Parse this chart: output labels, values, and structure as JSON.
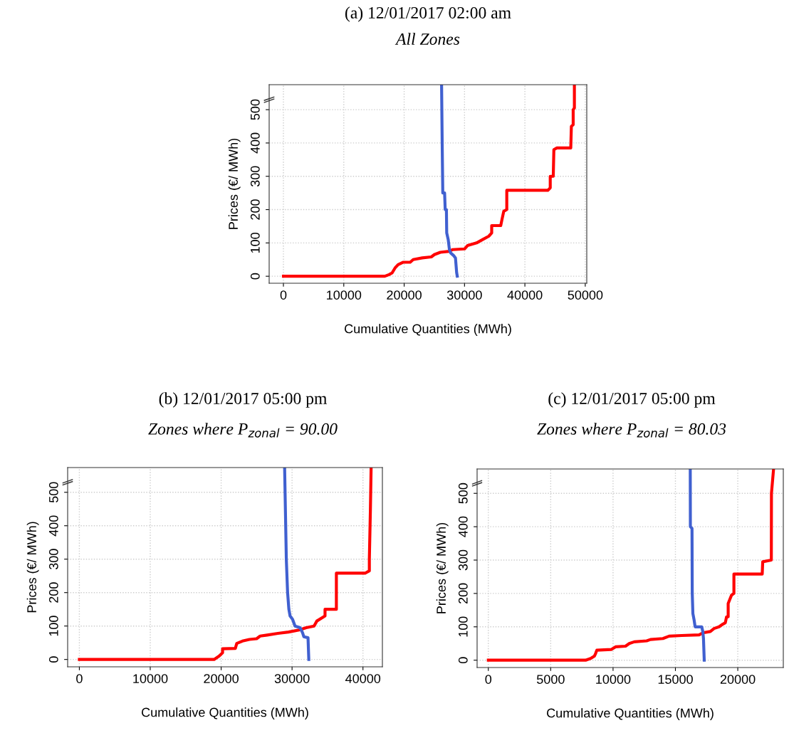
{
  "chart_data": [
    {
      "type": "line",
      "title": "(a) 12/01/2017 02:00 am",
      "subtitle": "All Zones",
      "xlabel": "Cumulative Quantities (MWh)",
      "ylabel": "Prices (€/ MWh)",
      "xlim": [
        -2360,
        50250
      ],
      "ylim": [
        -21,
        575
      ],
      "xticks": [
        0,
        10000,
        20000,
        30000,
        40000,
        50000
      ],
      "yticks": [
        0,
        100,
        200,
        300,
        400,
        500
      ],
      "grid": true,
      "line_style": "solid",
      "marker": "none",
      "series": [
        {
          "color": "#ff0000",
          "x": [
            0,
            16800,
            17500,
            18000,
            18500,
            19000,
            19800,
            21000,
            21500,
            23000,
            24500,
            25000,
            26000,
            27500,
            28000,
            30000,
            30500,
            32000,
            33000,
            34000,
            34500,
            34500,
            36000,
            36200,
            36500,
            37000,
            37000,
            43800,
            44200,
            44200,
            44700,
            44800,
            45300,
            47600,
            47700,
            48000,
            48000,
            48200,
            48200
          ],
          "values": [
            0,
            0,
            5,
            10,
            25,
            35,
            42,
            42,
            50,
            55,
            58,
            65,
            72,
            75,
            80,
            82,
            92,
            100,
            110,
            120,
            130,
            152,
            152,
            170,
            195,
            200,
            258,
            258,
            265,
            300,
            300,
            380,
            385,
            385,
            450,
            455,
            500,
            505,
            575
          ]
        },
        {
          "color": "#4060d0",
          "x": [
            26200,
            26300,
            26400,
            26700,
            26800,
            27000,
            27050,
            27300,
            27500,
            27700,
            28200,
            28500,
            28700,
            28800
          ],
          "values": [
            575,
            400,
            250,
            250,
            200,
            200,
            130,
            110,
            80,
            70,
            62,
            55,
            10,
            0
          ]
        }
      ]
    },
    {
      "type": "line",
      "title": "(b) 12/01/2017 05:00 pm",
      "subtitle": "Zones where P$_{zonal}$ = 90.00",
      "xlabel": "Cumulative Quantities (MWh)",
      "ylabel": "Prices (€/ MWh)",
      "xlim": [
        -1650,
        42740
      ],
      "ylim": [
        -22,
        574
      ],
      "xticks": [
        0,
        10000,
        20000,
        30000,
        40000
      ],
      "yticks": [
        0,
        100,
        200,
        300,
        400,
        500
      ],
      "grid": true,
      "line_style": "solid",
      "marker": "none",
      "series": [
        {
          "color": "#ff0000",
          "x": [
            0,
            19000,
            19700,
            20200,
            20200,
            22000,
            22200,
            23000,
            24000,
            25000,
            25500,
            26500,
            28000,
            29500,
            31000,
            32000,
            33100,
            33500,
            34650,
            34650,
            36250,
            36250,
            40300,
            40900,
            40900,
            41050,
            41150
          ],
          "values": [
            0,
            0,
            10,
            20,
            32,
            33,
            48,
            55,
            60,
            62,
            70,
            73,
            78,
            82,
            88,
            95,
            100,
            115,
            130,
            150,
            150,
            258,
            258,
            265,
            300,
            450,
            574
          ]
        },
        {
          "color": "#4060d0",
          "x": [
            28950,
            29190,
            29370,
            29550,
            29720,
            30070,
            30420,
            31130,
            31480,
            31660,
            32250,
            32360
          ],
          "values": [
            574,
            300,
            200,
            150,
            130,
            120,
            100,
            95,
            80,
            68,
            65,
            0
          ]
        }
      ]
    },
    {
      "type": "line",
      "title": "(c) 12/01/2017 05:00 pm",
      "subtitle": "Zones where P$_{zonal}$ = 80.03",
      "xlabel": "Cumulative Quantities (MWh)",
      "ylabel": "Prices (€/ MWh)",
      "xlim": [
        -900,
        23650
      ],
      "ylim": [
        -22,
        573
      ],
      "xticks": [
        0,
        5000,
        10000,
        15000,
        20000
      ],
      "yticks": [
        0,
        100,
        200,
        300,
        400,
        500
      ],
      "grid": true,
      "line_style": "solid",
      "marker": "none",
      "series": [
        {
          "color": "#ff0000",
          "x": [
            0,
            7800,
            8200,
            8500,
            8600,
            8700,
            9850,
            10200,
            11000,
            11300,
            11700,
            12700,
            13000,
            14000,
            14500,
            15500,
            16900,
            17200,
            17800,
            18100,
            18500,
            18800,
            19000,
            19100,
            19230,
            19230,
            19500,
            19690,
            19690,
            21960,
            22000,
            22690,
            22700,
            22870
          ],
          "values": [
            0,
            0,
            5,
            12,
            20,
            30,
            32,
            40,
            42,
            50,
            55,
            58,
            62,
            65,
            72,
            74,
            76,
            82,
            86,
            95,
            100,
            108,
            112,
            130,
            130,
            170,
            195,
            200,
            258,
            258,
            295,
            300,
            500,
            573
          ]
        },
        {
          "color": "#4060d0",
          "x": [
            16190,
            16200,
            16330,
            16350,
            16400,
            16500,
            16580,
            17110,
            17200,
            17250,
            17310
          ],
          "values": [
            573,
            400,
            395,
            200,
            140,
            120,
            100,
            100,
            85,
            65,
            0
          ]
        }
      ]
    }
  ]
}
